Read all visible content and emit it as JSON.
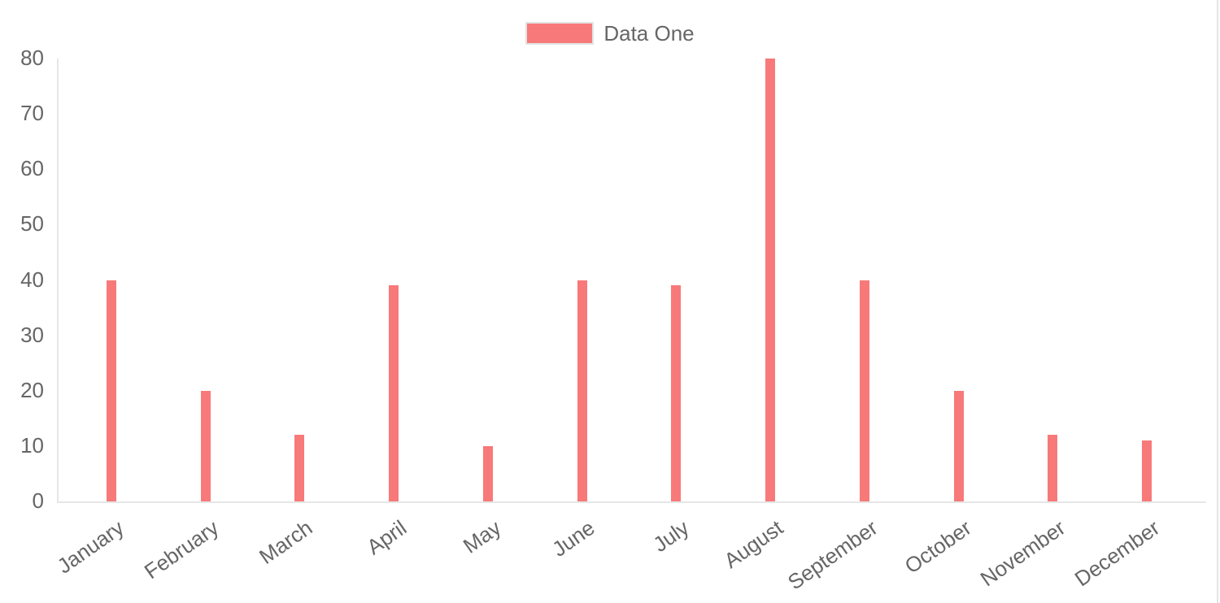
{
  "page": {
    "background": "#ffffff",
    "right_border_color": "#e4e4e4"
  },
  "legend": {
    "label": "Data One",
    "swatch_color": "#f87979",
    "swatch_border_color": "#e3e3e3",
    "text_color": "#666666",
    "position": "top"
  },
  "chart_data": {
    "type": "bar",
    "title": "",
    "categories": [
      "January",
      "February",
      "March",
      "April",
      "May",
      "June",
      "July",
      "August",
      "September",
      "October",
      "November",
      "December"
    ],
    "series": [
      {
        "name": "Data One",
        "color": "#f87979",
        "values": [
          40,
          20,
          12,
          39,
          10,
          40,
          39,
          80,
          40,
          20,
          12,
          11
        ]
      }
    ],
    "xlabel": "",
    "ylabel": "",
    "ylim": [
      0,
      80
    ],
    "yticks": [
      0,
      10,
      20,
      30,
      40,
      50,
      60,
      70,
      80
    ],
    "grid": false,
    "legend_position": "top",
    "axis_color": "#e6e6e6",
    "tick_color": "#666666",
    "x_tick_rotation_deg": -35
  }
}
